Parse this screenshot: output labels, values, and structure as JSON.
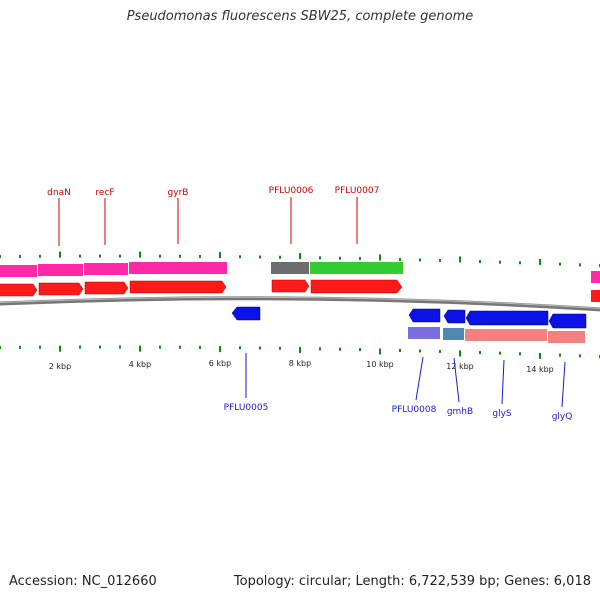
{
  "title": "Pseudomonas fluorescens SBW25, complete genome",
  "footer": {
    "accession": "Accession: NC_012660",
    "stats": "Topology: circular; Length: 6,722,539 bp; Genes: 6,018"
  },
  "scale": {
    "ticks_kbp": [
      1,
      2,
      3,
      4,
      5,
      6,
      7,
      8,
      9,
      10,
      11,
      12,
      13,
      14,
      15
    ],
    "labels": [
      "2 kbp",
      "4 kbp",
      "6 kbp",
      "8 kbp",
      "10 kbp",
      "12 kbp",
      "14 kbp"
    ]
  },
  "colors": {
    "gene_forward": "#ff1a1a",
    "gene_reverse": "#0a12e6",
    "label_forward": "#cc0000",
    "label_reverse": "#1a1acc",
    "tick": "#118811",
    "backbone": "#888888",
    "cog_magenta": "#ff2aa8",
    "cog_gray": "#6d6d6d",
    "cog_green": "#33cc33",
    "cog_purple": "#7a6ee0",
    "cog_teal": "#4f88b0",
    "cog_pink": "#f48080"
  },
  "forward_labels": [
    "dnaN",
    "recF",
    "gyrB",
    "PFLU0006",
    "PFLU0007"
  ],
  "reverse_labels": [
    "PFLU0005",
    "PFLU0008",
    "gmhB",
    "glyS",
    "glyQ"
  ]
}
